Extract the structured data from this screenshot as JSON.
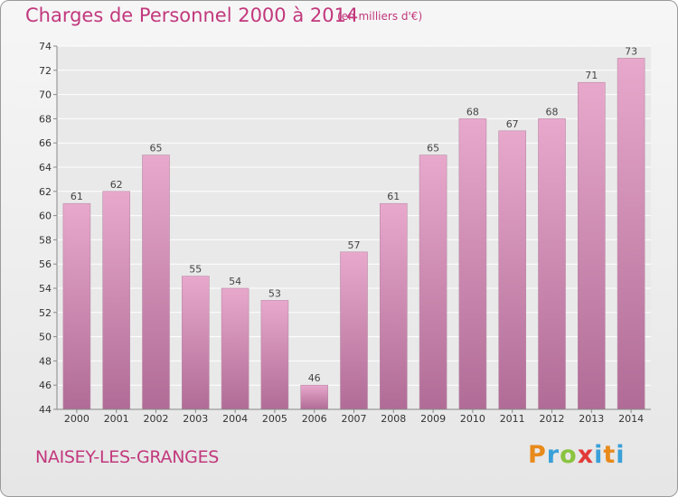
{
  "header": {
    "title": "Charges de Personnel 2000 à 2014",
    "subtitle": "(en milliers d'€)"
  },
  "footer": {
    "commune": "NAISEY-LES-GRANGES",
    "logo": "Proxiti"
  },
  "colors": {
    "accent": "#c2387d",
    "bar_top": "#e8a8cc",
    "bar_bottom": "#b06c96"
  },
  "chart_data": {
    "type": "bar",
    "title": "Charges de Personnel 2000 à 2014",
    "subtitle": "(en milliers d'€)",
    "categories": [
      "2000",
      "2001",
      "2002",
      "2003",
      "2004",
      "2005",
      "2006",
      "2007",
      "2008",
      "2009",
      "2010",
      "2011",
      "2012",
      "2013",
      "2014"
    ],
    "values": [
      61,
      62,
      65,
      55,
      54,
      53,
      46,
      57,
      61,
      65,
      68,
      67,
      68,
      71,
      73
    ],
    "ylim": [
      44,
      74
    ],
    "yticks": [
      44,
      46,
      48,
      50,
      52,
      54,
      56,
      58,
      60,
      62,
      64,
      66,
      68,
      70,
      72,
      74
    ],
    "grid": true,
    "legend": "none"
  }
}
